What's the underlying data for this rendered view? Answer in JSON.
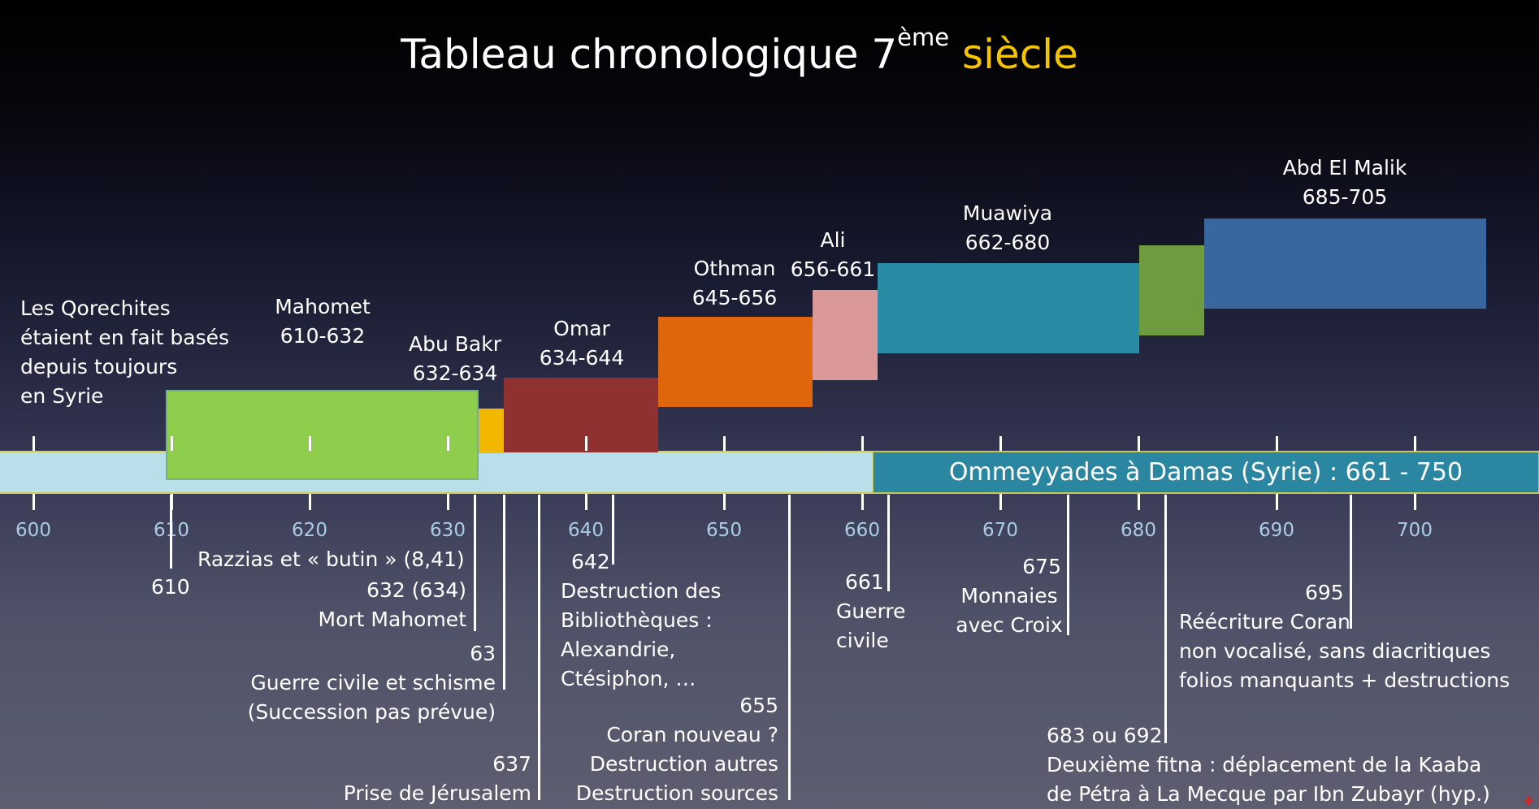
{
  "title": {
    "main": "Tableau chronologique 7",
    "sup": "ème",
    "rest": "siècle",
    "rest_color": "#f5c400"
  },
  "reigns": [
    {
      "name": "Mahomet",
      "years": "610-632",
      "color": "#8fcd4d"
    },
    {
      "name": "Abu Bakr",
      "years": "632-634",
      "color": "#f2b800"
    },
    {
      "name": "Omar",
      "years": "634-644",
      "color": "#8f3131"
    },
    {
      "name": "Othman",
      "years": "645-656",
      "color": "#df660c"
    },
    {
      "name": "Ali",
      "years": "656-661",
      "color": "#da9898"
    },
    {
      "name": "Muawiya",
      "years": "662-680",
      "color": "#2a8ba5"
    },
    {
      "name": "Abd El Malik",
      "years": "685-705",
      "color": "#3a66a0"
    }
  ],
  "extra_bar_color": "#6e9b3e",
  "intro": [
    "Les Qorechites",
    "étaient en fait basés",
    "depuis toujours",
    "en Syrie"
  ],
  "omeyyades": "Ommeyyades à Damas (Syrie) : 661 - 750",
  "axis_color": "#b9dfea",
  "axis_ticks": [
    "600",
    "610",
    "620",
    "630",
    "640",
    "650",
    "660",
    "670",
    "680",
    "690",
    "700"
  ],
  "events": {
    "e610": "610",
    "razzias": "Razzias et « butin » (8,41)",
    "e632": [
      "632 (634)",
      "Mort Mahomet"
    ],
    "e63": [
      "63",
      "Guerre civile et schisme",
      "(Succession pas prévue)"
    ],
    "e637": [
      "637",
      "Prise de Jérusalem"
    ],
    "e642": [
      "642",
      "Destruction des",
      "Bibliothèques :",
      "Alexandrie,",
      "Ctésiphon, …"
    ],
    "e655": [
      "655",
      "Coran nouveau ?",
      "Destruction autres",
      "Destruction sources"
    ],
    "e661": [
      "661",
      "Guerre",
      "civile"
    ],
    "e675": [
      "675",
      "Monnaies",
      "avec Croix"
    ],
    "e683": [
      "683 ou 692",
      "Deuxième fitna : déplacement de la Kaaba",
      "de Pétra à La Mecque par Ibn Zubayr (hyp.)"
    ],
    "e695": [
      "695",
      "Réécriture Coran",
      "non vocalisé, sans diacritiques",
      "folios manquants + destructions"
    ]
  }
}
